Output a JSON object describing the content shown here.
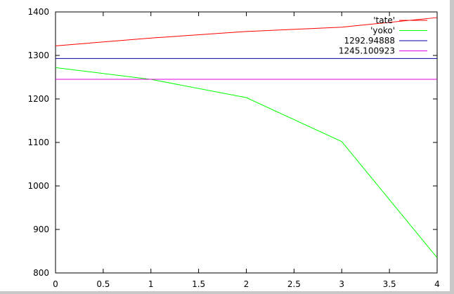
{
  "chart_data": {
    "type": "line",
    "xlim": [
      0,
      4
    ],
    "ylim": [
      800,
      1400
    ],
    "x_ticks": [
      "0",
      "0.5",
      "1",
      "1.5",
      "2",
      "2.5",
      "3",
      "3.5",
      "4"
    ],
    "y_ticks": [
      "800",
      "900",
      "1000",
      "1100",
      "1200",
      "1300",
      "1400"
    ],
    "x_tick_values": [
      0,
      0.5,
      1,
      1.5,
      2,
      2.5,
      3,
      3.5,
      4
    ],
    "y_tick_values": [
      800,
      900,
      1000,
      1100,
      1200,
      1300,
      1400
    ],
    "legend_position": "top-right",
    "grid": false,
    "series": [
      {
        "name": "'tate'",
        "color": "#ff0000",
        "x": [
          0,
          1,
          2,
          3,
          4
        ],
        "y": [
          1322,
          1340,
          1355,
          1365,
          1387
        ]
      },
      {
        "name": "'yoko'",
        "color": "#00ff00",
        "x": [
          0,
          1,
          2,
          3,
          4
        ],
        "y": [
          1272,
          1245,
          1203,
          1102,
          835
        ]
      },
      {
        "name": "1292.94888",
        "color": "#0000a0",
        "x": [
          0,
          4
        ],
        "y": [
          1292.94888,
          1292.94888
        ]
      },
      {
        "name": "1245.100923",
        "color": "#e000e0",
        "x": [
          0,
          4
        ],
        "y": [
          1245.100923,
          1245.100923
        ]
      }
    ]
  }
}
